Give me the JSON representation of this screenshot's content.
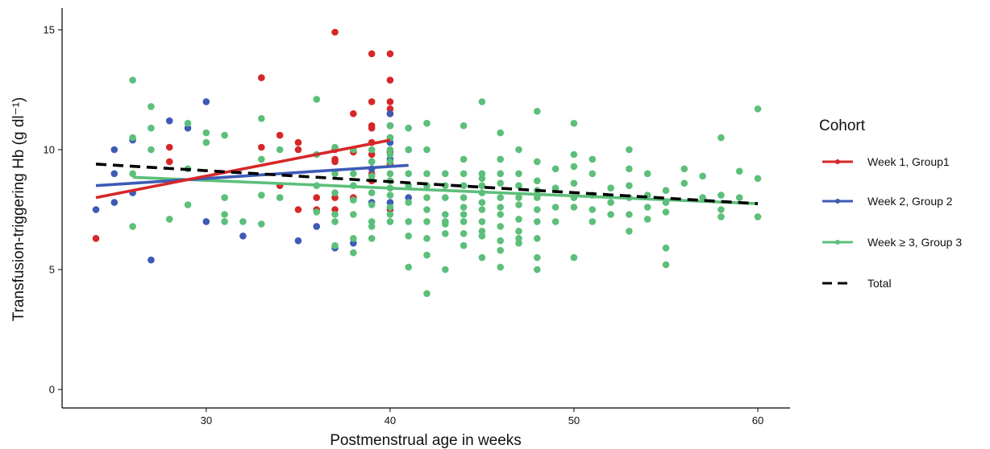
{
  "chart_data": {
    "type": "scatter",
    "title": "",
    "xlabel": "Postmenstrual age in weeks",
    "ylabel": "Transfusion-triggering Hb (g dl⁻¹)",
    "xlim": [
      22.4,
      62
    ],
    "ylim": [
      -0.7,
      15.8
    ],
    "xticks": [
      "30",
      "40",
      "50",
      "60"
    ],
    "yticks": [
      "0",
      "5",
      "10",
      "15"
    ],
    "xtick_values": [
      30,
      40,
      50,
      60
    ],
    "ytick_values": [
      0,
      5,
      10,
      15
    ],
    "grid": false,
    "legend": {
      "title": "Cohort",
      "position": "right"
    },
    "series": [
      {
        "name": "Week 1, Group1",
        "color": "#d62728",
        "points": [
          [
            24,
            6.3
          ],
          [
            28,
            10.1
          ],
          [
            28,
            9.5
          ],
          [
            33,
            13.0
          ],
          [
            33,
            10.1
          ],
          [
            34,
            10.6
          ],
          [
            34,
            8.5
          ],
          [
            35,
            10.3
          ],
          [
            35,
            10.0
          ],
          [
            35,
            7.5
          ],
          [
            36,
            8.0
          ],
          [
            36,
            7.5
          ],
          [
            37,
            14.9
          ],
          [
            37,
            10.0
          ],
          [
            37,
            9.6
          ],
          [
            37,
            9.5
          ],
          [
            37,
            8.0
          ],
          [
            37,
            7.5
          ],
          [
            38,
            11.5
          ],
          [
            38,
            9.9
          ],
          [
            38,
            8.0
          ],
          [
            39,
            14.0
          ],
          [
            39,
            12.0
          ],
          [
            39,
            11.0
          ],
          [
            39,
            10.9
          ],
          [
            39,
            10.3
          ],
          [
            39,
            9.8
          ],
          [
            39,
            9.0
          ],
          [
            39,
            8.7
          ],
          [
            40,
            14.0
          ],
          [
            40,
            12.9
          ],
          [
            40,
            12.0
          ],
          [
            40,
            11.7
          ],
          [
            40,
            11.5
          ],
          [
            40,
            10.5
          ],
          [
            40,
            9.9
          ],
          [
            40,
            9.4
          ],
          [
            40,
            7.5
          ]
        ],
        "trend": [
          [
            24,
            8.0
          ],
          [
            40,
            10.4
          ]
        ]
      },
      {
        "name": "Week 2, Group 2",
        "color": "#3d5bb5",
        "points": [
          [
            24,
            7.5
          ],
          [
            25,
            10.0
          ],
          [
            25,
            9.0
          ],
          [
            25,
            7.8
          ],
          [
            26,
            10.4
          ],
          [
            26,
            8.2
          ],
          [
            27,
            5.4
          ],
          [
            28,
            11.2
          ],
          [
            29,
            10.9
          ],
          [
            30,
            12.0
          ],
          [
            30,
            7.0
          ],
          [
            32,
            6.4
          ],
          [
            35,
            6.2
          ],
          [
            36,
            6.8
          ],
          [
            37,
            5.9
          ],
          [
            38,
            6.1
          ],
          [
            39,
            9.5
          ],
          [
            39,
            9.2
          ],
          [
            39,
            7.8
          ],
          [
            40,
            11.5
          ],
          [
            40,
            11.0
          ],
          [
            40,
            10.3
          ],
          [
            40,
            9.6
          ],
          [
            40,
            7.8
          ],
          [
            41,
            10.0
          ],
          [
            41,
            8.0
          ]
        ],
        "trend": [
          [
            24,
            8.5
          ],
          [
            41,
            9.35
          ]
        ]
      },
      {
        "name": "Week  ≥ 3, Group 3",
        "color": "#5cbf7a",
        "points": [
          [
            26,
            12.9
          ],
          [
            26,
            10.5
          ],
          [
            26,
            9.0
          ],
          [
            26,
            6.8
          ],
          [
            27,
            11.8
          ],
          [
            27,
            10.9
          ],
          [
            27,
            10.0
          ],
          [
            28,
            7.1
          ],
          [
            29,
            11.1
          ],
          [
            29,
            9.2
          ],
          [
            29,
            7.7
          ],
          [
            30,
            10.7
          ],
          [
            30,
            10.3
          ],
          [
            30,
            8.8
          ],
          [
            31,
            10.6
          ],
          [
            31,
            8.0
          ],
          [
            31,
            7.3
          ],
          [
            31,
            7.0
          ],
          [
            32,
            7.0
          ],
          [
            33,
            11.3
          ],
          [
            33,
            9.6
          ],
          [
            33,
            8.1
          ],
          [
            33,
            6.9
          ],
          [
            34,
            10.0
          ],
          [
            34,
            8.0
          ],
          [
            36,
            12.1
          ],
          [
            36,
            9.8
          ],
          [
            36,
            8.5
          ],
          [
            36,
            7.4
          ],
          [
            37,
            10.1
          ],
          [
            37,
            9.0
          ],
          [
            37,
            8.2
          ],
          [
            37,
            7.3
          ],
          [
            37,
            7.0
          ],
          [
            37,
            6.0
          ],
          [
            38,
            10.0
          ],
          [
            38,
            9.0
          ],
          [
            38,
            8.5
          ],
          [
            38,
            7.9
          ],
          [
            38,
            7.3
          ],
          [
            38,
            6.3
          ],
          [
            38,
            5.7
          ],
          [
            39,
            10.0
          ],
          [
            39,
            9.5
          ],
          [
            39,
            8.9
          ],
          [
            39,
            8.2
          ],
          [
            39,
            7.7
          ],
          [
            39,
            7.0
          ],
          [
            39,
            6.8
          ],
          [
            39,
            6.3
          ],
          [
            40,
            11.0
          ],
          [
            40,
            10.5
          ],
          [
            40,
            10.0
          ],
          [
            40,
            9.8
          ],
          [
            40,
            9.5
          ],
          [
            40,
            9.0
          ],
          [
            40,
            8.7
          ],
          [
            40,
            8.4
          ],
          [
            40,
            8.1
          ],
          [
            40,
            7.6
          ],
          [
            40,
            7.3
          ],
          [
            40,
            7.0
          ],
          [
            41,
            10.9
          ],
          [
            41,
            10.0
          ],
          [
            41,
            9.0
          ],
          [
            41,
            8.5
          ],
          [
            41,
            7.8
          ],
          [
            41,
            7.0
          ],
          [
            41,
            6.4
          ],
          [
            41,
            5.1
          ],
          [
            42,
            11.1
          ],
          [
            42,
            10.0
          ],
          [
            42,
            9.0
          ],
          [
            42,
            8.5
          ],
          [
            42,
            8.0
          ],
          [
            42,
            7.5
          ],
          [
            42,
            7.0
          ],
          [
            42,
            6.3
          ],
          [
            42,
            5.6
          ],
          [
            42,
            4.0
          ],
          [
            43,
            9.0
          ],
          [
            43,
            8.5
          ],
          [
            43,
            8.0
          ],
          [
            43,
            7.3
          ],
          [
            43,
            7.0
          ],
          [
            43,
            6.9
          ],
          [
            43,
            6.5
          ],
          [
            43,
            5.0
          ],
          [
            44,
            11.0
          ],
          [
            44,
            9.6
          ],
          [
            44,
            9.0
          ],
          [
            44,
            8.5
          ],
          [
            44,
            8.0
          ],
          [
            44,
            7.6
          ],
          [
            44,
            7.3
          ],
          [
            44,
            7.0
          ],
          [
            44,
            6.5
          ],
          [
            44,
            6.0
          ],
          [
            45,
            12.0
          ],
          [
            45,
            9.0
          ],
          [
            45,
            8.8
          ],
          [
            45,
            8.5
          ],
          [
            45,
            8.2
          ],
          [
            45,
            7.8
          ],
          [
            45,
            7.5
          ],
          [
            45,
            7.0
          ],
          [
            45,
            6.6
          ],
          [
            45,
            6.4
          ],
          [
            45,
            5.5
          ],
          [
            46,
            10.7
          ],
          [
            46,
            9.6
          ],
          [
            46,
            9.0
          ],
          [
            46,
            8.6
          ],
          [
            46,
            8.0
          ],
          [
            46,
            7.6
          ],
          [
            46,
            7.3
          ],
          [
            46,
            6.8
          ],
          [
            46,
            6.2
          ],
          [
            46,
            5.8
          ],
          [
            46,
            5.1
          ],
          [
            47,
            10.0
          ],
          [
            47,
            9.0
          ],
          [
            47,
            8.5
          ],
          [
            47,
            8.0
          ],
          [
            47,
            7.7
          ],
          [
            47,
            7.1
          ],
          [
            47,
            6.6
          ],
          [
            47,
            6.3
          ],
          [
            47,
            6.1
          ],
          [
            48,
            11.6
          ],
          [
            48,
            9.5
          ],
          [
            48,
            8.7
          ],
          [
            48,
            8.3
          ],
          [
            48,
            8.0
          ],
          [
            48,
            7.5
          ],
          [
            48,
            7.0
          ],
          [
            48,
            6.3
          ],
          [
            48,
            5.5
          ],
          [
            48,
            5.0
          ],
          [
            49,
            9.2
          ],
          [
            49,
            8.4
          ],
          [
            49,
            7.6
          ],
          [
            49,
            7.0
          ],
          [
            50,
            11.1
          ],
          [
            50,
            9.8
          ],
          [
            50,
            9.3
          ],
          [
            50,
            8.6
          ],
          [
            50,
            8.0
          ],
          [
            50,
            7.6
          ],
          [
            50,
            5.5
          ],
          [
            51,
            9.6
          ],
          [
            51,
            9.0
          ],
          [
            51,
            8.1
          ],
          [
            51,
            7.5
          ],
          [
            51,
            7.0
          ],
          [
            52,
            8.4
          ],
          [
            52,
            7.8
          ],
          [
            52,
            7.3
          ],
          [
            53,
            10.0
          ],
          [
            53,
            9.2
          ],
          [
            53,
            8.5
          ],
          [
            53,
            8.0
          ],
          [
            53,
            7.3
          ],
          [
            53,
            6.6
          ],
          [
            54,
            9.0
          ],
          [
            54,
            8.1
          ],
          [
            54,
            7.6
          ],
          [
            54,
            7.1
          ],
          [
            55,
            8.3
          ],
          [
            55,
            7.8
          ],
          [
            55,
            7.4
          ],
          [
            55,
            5.9
          ],
          [
            55,
            5.2
          ],
          [
            56,
            9.2
          ],
          [
            56,
            8.6
          ],
          [
            57,
            8.9
          ],
          [
            57,
            8.0
          ],
          [
            58,
            10.5
          ],
          [
            58,
            8.1
          ],
          [
            58,
            7.5
          ],
          [
            58,
            7.2
          ],
          [
            59,
            9.1
          ],
          [
            59,
            8.0
          ],
          [
            60,
            11.7
          ],
          [
            60,
            8.8
          ],
          [
            60,
            7.2
          ]
        ],
        "trend": [
          [
            26,
            8.85
          ],
          [
            60,
            7.75
          ]
        ]
      },
      {
        "name": "Total",
        "color": "#000000",
        "dashed": true,
        "points": [],
        "trend": [
          [
            24,
            9.4
          ],
          [
            60,
            7.75
          ]
        ]
      }
    ]
  }
}
